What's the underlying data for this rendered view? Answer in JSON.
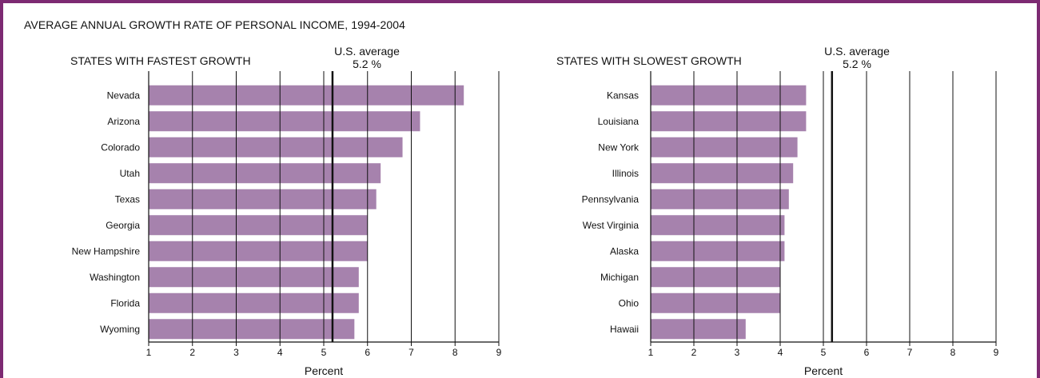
{
  "title": "AVERAGE ANNUAL GROWTH RATE OF PERSONAL INCOME, 1994-2004",
  "colors": {
    "bar": "#a682ad",
    "frame": "#7d2a72",
    "grid": "#111111"
  },
  "chart_data": [
    {
      "type": "bar",
      "orientation": "horizontal",
      "title": "STATES WITH FASTEST GROWTH",
      "xlabel": "Percent",
      "xlim": [
        1,
        9
      ],
      "xticks": [
        1,
        2,
        3,
        4,
        5,
        6,
        7,
        8,
        9
      ],
      "grid": true,
      "reference_line": {
        "value": 5.2,
        "label_line1": "U.S. average",
        "label_line2": "5.2 %"
      },
      "categories": [
        "Nevada",
        "Arizona",
        "Colorado",
        "Utah",
        "Texas",
        "Georgia",
        "New Hampshire",
        "Washington",
        "Florida",
        "Wyoming"
      ],
      "values": [
        8.2,
        7.2,
        6.8,
        6.3,
        6.2,
        6.0,
        6.0,
        5.8,
        5.8,
        5.7
      ]
    },
    {
      "type": "bar",
      "orientation": "horizontal",
      "title": "STATES WITH SLOWEST GROWTH",
      "xlabel": "Percent",
      "xlim": [
        1,
        9
      ],
      "xticks": [
        1,
        2,
        3,
        4,
        5,
        6,
        7,
        8,
        9
      ],
      "grid": true,
      "reference_line": {
        "value": 5.2,
        "label_line1": "U.S. average",
        "label_line2": "5.2 %"
      },
      "categories": [
        "Kansas",
        "Louisiana",
        "New York",
        "Illinois",
        "Pennsylvania",
        "West Virginia",
        "Alaska",
        "Michigan",
        "Ohio",
        "Hawaii"
      ],
      "values": [
        4.6,
        4.6,
        4.4,
        4.3,
        4.2,
        4.1,
        4.1,
        4.0,
        4.0,
        3.2
      ]
    }
  ]
}
